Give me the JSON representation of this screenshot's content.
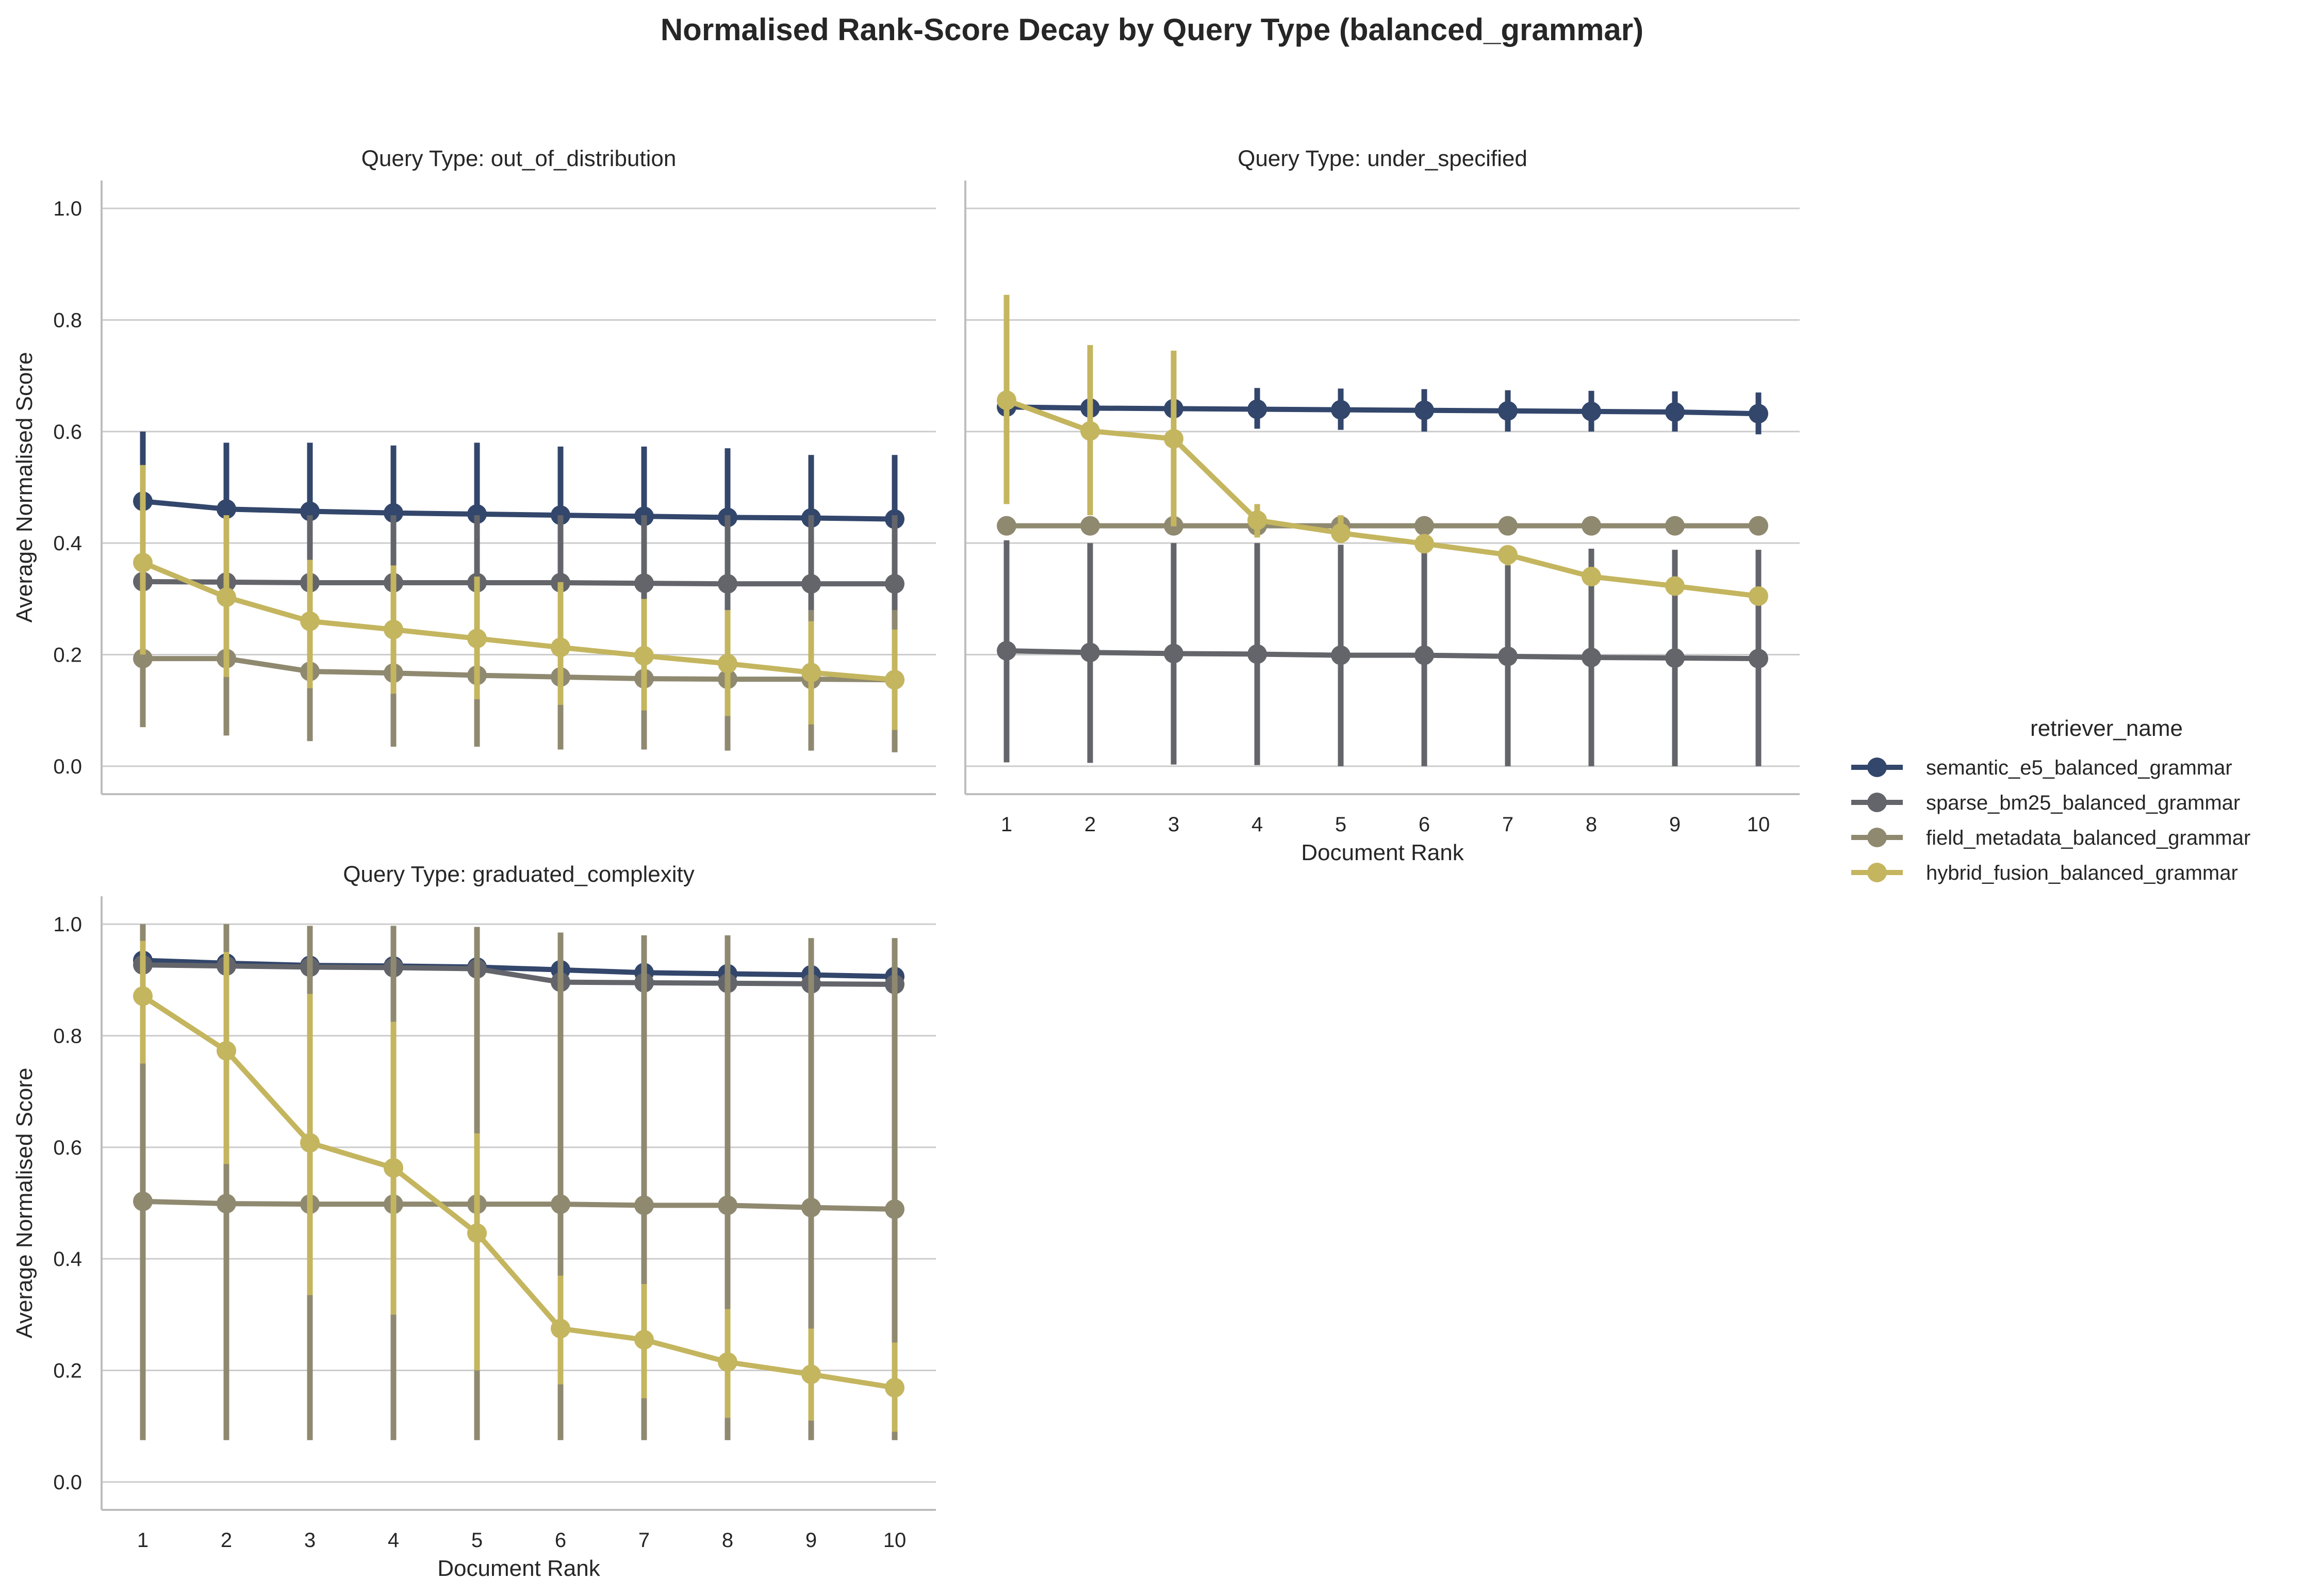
{
  "figure": {
    "title": "Normalised Rank-Score Decay by Query Type (balanced_grammar)"
  },
  "legend": {
    "title": "retriever_name",
    "entries": [
      {
        "name": "semantic_e5_balanced_grammar",
        "color": "#33466b"
      },
      {
        "name": "sparse_bm25_balanced_grammar",
        "color": "#63656a"
      },
      {
        "name": "field_metadata_balanced_grammar",
        "color": "#8f8970"
      },
      {
        "name": "hybrid_fusion_balanced_grammar",
        "color": "#c4b55f"
      }
    ],
    "placement": "right"
  },
  "chart_data": [
    {
      "type": "line",
      "panel": "top-left",
      "title": "Query Type: out_of_distribution",
      "xlabel": "",
      "ylabel": "Average Normalised Score",
      "x": [
        1,
        2,
        3,
        4,
        5,
        6,
        7,
        8,
        9,
        10
      ],
      "xticklabels_shown": false,
      "ylim": [
        -0.05,
        1.05
      ],
      "yticks": [
        "0.0",
        "0.2",
        "0.4",
        "0.6",
        "0.8",
        "1.0"
      ],
      "grid": "horizontal",
      "series": [
        {
          "name": "semantic_e5_balanced_grammar",
          "color": "#33466b",
          "values": [
            0.475,
            0.461,
            0.457,
            0.454,
            0.452,
            0.45,
            0.448,
            0.446,
            0.445,
            0.443
          ],
          "err_low": [
            0.35,
            0.34,
            0.34,
            0.34,
            0.33,
            0.33,
            0.33,
            0.33,
            0.33,
            0.33
          ],
          "err_high": [
            0.6,
            0.58,
            0.58,
            0.575,
            0.58,
            0.573,
            0.573,
            0.57,
            0.558,
            0.558
          ]
        },
        {
          "name": "sparse_bm25_balanced_grammar",
          "color": "#63656a",
          "values": [
            0.331,
            0.33,
            0.329,
            0.329,
            0.329,
            0.329,
            0.328,
            0.327,
            0.327,
            0.327
          ],
          "err_low": [
            0.2,
            0.2,
            0.2,
            0.2,
            0.2,
            0.2,
            0.2,
            0.2,
            0.2,
            0.2
          ],
          "err_high": [
            0.45,
            0.45,
            0.45,
            0.45,
            0.45,
            0.45,
            0.45,
            0.45,
            0.45,
            0.45
          ]
        },
        {
          "name": "field_metadata_balanced_grammar",
          "color": "#8f8970",
          "values": [
            0.193,
            0.193,
            0.17,
            0.167,
            0.163,
            0.16,
            0.157,
            0.156,
            0.156,
            0.155
          ],
          "err_low": [
            0.07,
            0.055,
            0.045,
            0.035,
            0.035,
            0.03,
            0.03,
            0.028,
            0.028,
            0.025
          ],
          "err_high": [
            0.32,
            0.33,
            0.3,
            0.3,
            0.29,
            0.29,
            0.28,
            0.28,
            0.28,
            0.28
          ]
        },
        {
          "name": "hybrid_fusion_balanced_grammar",
          "color": "#c4b55f",
          "values": [
            0.365,
            0.303,
            0.26,
            0.245,
            0.229,
            0.213,
            0.198,
            0.184,
            0.168,
            0.155
          ],
          "err_low": [
            0.2,
            0.16,
            0.14,
            0.13,
            0.12,
            0.11,
            0.1,
            0.09,
            0.075,
            0.065
          ],
          "err_high": [
            0.54,
            0.45,
            0.37,
            0.36,
            0.34,
            0.33,
            0.3,
            0.28,
            0.26,
            0.245
          ]
        }
      ]
    },
    {
      "type": "line",
      "panel": "top-right",
      "title": "Query Type: under_specified",
      "xlabel": "Document Rank",
      "ylabel": "",
      "x": [
        1,
        2,
        3,
        4,
        5,
        6,
        7,
        8,
        9,
        10
      ],
      "xticklabels_shown": true,
      "ylim": [
        -0.05,
        1.05
      ],
      "yticks_shown": false,
      "grid": "horizontal",
      "series": [
        {
          "name": "semantic_e5_balanced_grammar",
          "color": "#33466b",
          "values": [
            0.644,
            0.642,
            0.641,
            0.64,
            0.639,
            0.638,
            0.637,
            0.636,
            0.635,
            0.632
          ],
          "err_low": [
            0.61,
            0.61,
            0.605,
            0.605,
            0.603,
            0.6,
            0.6,
            0.6,
            0.6,
            0.595
          ],
          "err_high": [
            0.68,
            0.68,
            0.678,
            0.678,
            0.677,
            0.676,
            0.674,
            0.673,
            0.672,
            0.67
          ]
        },
        {
          "name": "sparse_bm25_balanced_grammar",
          "color": "#63656a",
          "values": [
            0.207,
            0.204,
            0.202,
            0.201,
            0.199,
            0.199,
            0.197,
            0.195,
            0.194,
            0.193
          ],
          "err_low": [
            0.007,
            0.006,
            0.003,
            0.002,
            0.0,
            0.0,
            0.0,
            0.0,
            0.0,
            0.0
          ],
          "err_high": [
            0.405,
            0.4,
            0.4,
            0.4,
            0.397,
            0.395,
            0.393,
            0.39,
            0.388,
            0.388
          ]
        },
        {
          "name": "field_metadata_balanced_grammar",
          "color": "#8f8970",
          "values": [
            0.431,
            0.431,
            0.431,
            0.431,
            0.431,
            0.431,
            0.431,
            0.431,
            0.431,
            0.431
          ],
          "err_low": [
            0.428,
            0.428,
            0.428,
            0.428,
            0.428,
            0.428,
            0.428,
            0.428,
            0.428,
            0.428
          ],
          "err_high": [
            0.434,
            0.434,
            0.434,
            0.434,
            0.434,
            0.434,
            0.434,
            0.434,
            0.434,
            0.434
          ]
        },
        {
          "name": "hybrid_fusion_balanced_grammar",
          "color": "#c4b55f",
          "values": [
            0.656,
            0.601,
            0.587,
            0.441,
            0.418,
            0.399,
            0.379,
            0.34,
            0.323,
            0.305
          ],
          "err_low": [
            0.47,
            0.45,
            0.43,
            0.41,
            0.4,
            0.385,
            0.36,
            0.33,
            0.31,
            0.29
          ],
          "err_high": [
            0.845,
            0.755,
            0.745,
            0.47,
            0.45,
            0.415,
            0.395,
            0.355,
            0.335,
            0.32
          ]
        }
      ]
    },
    {
      "type": "line",
      "panel": "bottom-left",
      "title": "Query Type: graduated_complexity",
      "xlabel": "Document Rank",
      "ylabel": "Average Normalised Score",
      "x": [
        1,
        2,
        3,
        4,
        5,
        6,
        7,
        8,
        9,
        10
      ],
      "xticklabels_shown": true,
      "ylim": [
        -0.05,
        1.05
      ],
      "yticks": [
        "0.0",
        "0.2",
        "0.4",
        "0.6",
        "0.8",
        "1.0"
      ],
      "grid": "horizontal",
      "series": [
        {
          "name": "semantic_e5_balanced_grammar",
          "color": "#33466b",
          "values": [
            0.935,
            0.93,
            0.926,
            0.925,
            0.923,
            0.918,
            0.913,
            0.911,
            0.909,
            0.906
          ],
          "err_low": [
            0.905,
            0.9,
            0.895,
            0.895,
            0.89,
            0.885,
            0.88,
            0.878,
            0.876,
            0.872
          ],
          "err_high": [
            0.962,
            0.96,
            0.957,
            0.955,
            0.953,
            0.95,
            0.945,
            0.943,
            0.94,
            0.938
          ]
        },
        {
          "name": "sparse_bm25_balanced_grammar",
          "color": "#63656a",
          "values": [
            0.927,
            0.925,
            0.923,
            0.922,
            0.92,
            0.896,
            0.895,
            0.894,
            0.893,
            0.892
          ],
          "err_low": [
            0.86,
            0.855,
            0.85,
            0.85,
            0.85,
            0.82,
            0.82,
            0.82,
            0.82,
            0.82
          ],
          "err_high": [
            0.99,
            0.99,
            0.99,
            0.99,
            0.99,
            0.97,
            0.97,
            0.97,
            0.97,
            0.97
          ]
        },
        {
          "name": "field_metadata_balanced_grammar",
          "color": "#8f8970",
          "values": [
            0.503,
            0.499,
            0.498,
            0.498,
            0.498,
            0.498,
            0.496,
            0.496,
            0.492,
            0.489
          ],
          "err_low": [
            0.075,
            0.075,
            0.075,
            0.075,
            0.075,
            0.075,
            0.075,
            0.075,
            0.075,
            0.075
          ],
          "err_high": [
            1.0,
            1.0,
            0.997,
            0.997,
            0.995,
            0.985,
            0.98,
            0.98,
            0.975,
            0.975
          ]
        },
        {
          "name": "hybrid_fusion_balanced_grammar",
          "color": "#c4b55f",
          "values": [
            0.871,
            0.773,
            0.608,
            0.563,
            0.446,
            0.275,
            0.255,
            0.215,
            0.193,
            0.169
          ],
          "err_low": [
            0.75,
            0.57,
            0.335,
            0.3,
            0.2,
            0.175,
            0.15,
            0.115,
            0.11,
            0.09
          ],
          "err_high": [
            0.97,
            0.95,
            0.875,
            0.825,
            0.625,
            0.37,
            0.355,
            0.31,
            0.275,
            0.25
          ]
        }
      ]
    }
  ]
}
